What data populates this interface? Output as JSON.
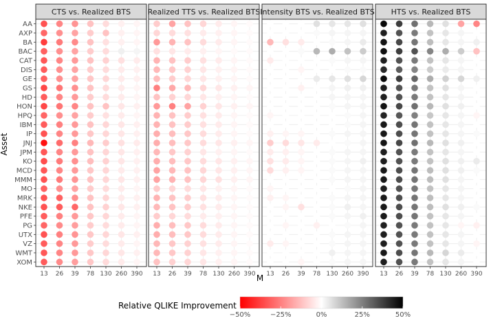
{
  "chart_data": {
    "type": "heatmap",
    "subtype": "faceted-dot-matrix",
    "x_label": "M",
    "y_label": "Asset",
    "x_ticks": [
      "13",
      "26",
      "39",
      "78",
      "130",
      "260",
      "390"
    ],
    "assets": [
      "AA",
      "AXP",
      "BA",
      "BAC",
      "CAT",
      "DIS",
      "GE",
      "GS",
      "HD",
      "HON",
      "HPQ",
      "IBM",
      "IP",
      "JNJ",
      "JPM",
      "KO",
      "MCD",
      "MMM",
      "MO",
      "MRK",
      "NKE",
      "PFE",
      "PG",
      "UTX",
      "VZ",
      "WMT",
      "XOM"
    ],
    "legend": {
      "title": "Relative QLIKE Improvement",
      "range": [
        -0.5,
        0.5
      ],
      "ticks": [
        "−50%",
        "−25%",
        "0%",
        "25%",
        "50%"
      ],
      "tick_values": [
        -0.5,
        -0.25,
        0,
        0.25,
        0.5
      ],
      "colors": {
        "negative": "#ff0000",
        "zero": "#ffffff",
        "positive": "#000000"
      }
    },
    "unit": "fraction (negative = red, positive = grey/black)",
    "panels": [
      {
        "title": "CTS    vs.    Realized BTS",
        "values": [
          [
            -0.34,
            -0.24,
            -0.21,
            -0.12,
            -0.07,
            -0.03,
            -0.02
          ],
          [
            -0.3,
            -0.22,
            -0.18,
            -0.1,
            -0.12,
            -0.03,
            -0.02
          ],
          [
            -0.38,
            -0.26,
            -0.23,
            -0.12,
            -0.06,
            -0.03,
            -0.02
          ],
          [
            -0.31,
            -0.22,
            -0.18,
            -0.1,
            -0.07,
            0.03,
            0.02
          ],
          [
            -0.33,
            -0.24,
            -0.2,
            -0.12,
            -0.09,
            -0.06,
            -0.04
          ],
          [
            -0.32,
            -0.22,
            -0.18,
            -0.1,
            -0.07,
            -0.04,
            -0.03
          ],
          [
            -0.31,
            -0.22,
            -0.18,
            -0.11,
            -0.08,
            -0.04,
            -0.03
          ],
          [
            -0.36,
            -0.27,
            -0.22,
            -0.12,
            -0.07,
            -0.04,
            -0.02
          ],
          [
            -0.32,
            -0.24,
            -0.2,
            -0.1,
            -0.07,
            -0.04,
            -0.02
          ],
          [
            -0.36,
            -0.27,
            -0.24,
            -0.12,
            -0.12,
            -0.05,
            -0.03
          ],
          [
            -0.3,
            -0.22,
            -0.18,
            -0.1,
            -0.06,
            -0.04,
            -0.02
          ],
          [
            -0.32,
            -0.25,
            -0.2,
            -0.12,
            -0.08,
            -0.05,
            -0.03
          ],
          [
            -0.34,
            -0.24,
            -0.2,
            -0.11,
            -0.08,
            -0.05,
            -0.03
          ],
          [
            -0.47,
            -0.29,
            -0.25,
            -0.14,
            -0.1,
            -0.06,
            -0.04
          ],
          [
            -0.33,
            -0.24,
            -0.2,
            -0.12,
            -0.08,
            -0.05,
            -0.03
          ],
          [
            -0.35,
            -0.26,
            -0.22,
            -0.13,
            -0.09,
            -0.05,
            -0.03
          ],
          [
            -0.33,
            -0.24,
            -0.2,
            -0.11,
            -0.08,
            -0.04,
            -0.03
          ],
          [
            -0.34,
            -0.26,
            -0.21,
            -0.12,
            -0.08,
            -0.05,
            -0.03
          ],
          [
            -0.31,
            -0.22,
            -0.18,
            -0.1,
            -0.07,
            -0.04,
            -0.02
          ],
          [
            -0.34,
            -0.31,
            -0.22,
            -0.12,
            -0.08,
            -0.04,
            -0.03
          ],
          [
            -0.34,
            -0.32,
            -0.3,
            -0.12,
            -0.09,
            -0.05,
            -0.03
          ],
          [
            -0.32,
            -0.25,
            -0.2,
            -0.11,
            -0.08,
            -0.04,
            -0.02
          ],
          [
            -0.3,
            -0.23,
            -0.19,
            -0.1,
            -0.07,
            -0.04,
            -0.02
          ],
          [
            -0.34,
            -0.25,
            -0.21,
            -0.11,
            -0.08,
            -0.05,
            -0.03
          ],
          [
            -0.32,
            -0.24,
            -0.2,
            -0.1,
            -0.07,
            -0.04,
            -0.02
          ],
          [
            -0.33,
            -0.24,
            -0.2,
            -0.11,
            -0.08,
            -0.05,
            -0.03
          ],
          [
            -0.32,
            -0.23,
            -0.19,
            -0.11,
            -0.07,
            -0.04,
            -0.02
          ]
        ]
      },
      {
        "title": "Realized TTS    vs.    Realized BTS",
        "values": [
          [
            -0.1,
            -0.18,
            -0.12,
            -0.08,
            -0.04,
            -0.02,
            -0.01
          ],
          [
            -0.08,
            -0.07,
            -0.06,
            -0.04,
            -0.03,
            -0.02,
            -0.01
          ],
          [
            -0.2,
            -0.15,
            -0.12,
            -0.07,
            -0.04,
            -0.02,
            -0.01
          ],
          [
            -0.06,
            -0.05,
            -0.04,
            -0.03,
            -0.02,
            -0.01,
            -0.01
          ],
          [
            -0.15,
            -0.12,
            -0.1,
            -0.06,
            -0.04,
            -0.02,
            -0.01
          ],
          [
            -0.14,
            -0.11,
            -0.09,
            -0.05,
            -0.03,
            -0.02,
            -0.01
          ],
          [
            -0.13,
            -0.1,
            -0.08,
            -0.05,
            -0.03,
            -0.02,
            -0.01
          ],
          [
            -0.25,
            -0.17,
            -0.14,
            -0.08,
            -0.05,
            -0.03,
            -0.02
          ],
          [
            -0.12,
            -0.09,
            -0.08,
            -0.05,
            -0.03,
            -0.02,
            -0.01
          ],
          [
            -0.2,
            -0.25,
            -0.18,
            -0.09,
            -0.05,
            -0.03,
            -0.02
          ],
          [
            -0.15,
            -0.12,
            -0.1,
            -0.06,
            -0.04,
            -0.02,
            -0.01
          ],
          [
            -0.15,
            -0.12,
            -0.1,
            -0.06,
            -0.04,
            -0.02,
            -0.01
          ],
          [
            -0.16,
            -0.13,
            -0.11,
            -0.07,
            -0.04,
            -0.02,
            -0.01
          ],
          [
            -0.16,
            -0.13,
            -0.11,
            -0.07,
            -0.05,
            -0.03,
            -0.02
          ],
          [
            -0.14,
            -0.11,
            -0.09,
            -0.05,
            -0.03,
            -0.02,
            -0.01
          ],
          [
            -0.16,
            -0.13,
            -0.11,
            -0.07,
            -0.05,
            -0.03,
            -0.02
          ],
          [
            -0.18,
            -0.14,
            -0.12,
            -0.08,
            -0.05,
            -0.03,
            -0.02
          ],
          [
            -0.18,
            -0.15,
            -0.12,
            -0.08,
            -0.06,
            -0.03,
            -0.02
          ],
          [
            -0.1,
            -0.08,
            -0.07,
            -0.05,
            -0.03,
            -0.02,
            -0.01
          ],
          [
            -0.15,
            -0.12,
            -0.1,
            -0.06,
            -0.04,
            -0.02,
            -0.01
          ],
          [
            -0.14,
            -0.12,
            -0.1,
            -0.06,
            -0.04,
            -0.02,
            -0.01
          ],
          [
            -0.1,
            -0.08,
            -0.07,
            -0.04,
            -0.03,
            -0.02,
            -0.01
          ],
          [
            -0.16,
            -0.13,
            -0.11,
            -0.07,
            -0.04,
            -0.02,
            -0.01
          ],
          [
            -0.16,
            -0.13,
            -0.11,
            -0.07,
            -0.04,
            -0.02,
            -0.01
          ],
          [
            -0.14,
            -0.11,
            -0.09,
            -0.06,
            -0.04,
            -0.02,
            -0.01
          ],
          [
            -0.14,
            -0.11,
            -0.09,
            -0.05,
            -0.03,
            -0.02,
            -0.01
          ],
          [
            -0.12,
            -0.09,
            -0.08,
            -0.05,
            -0.03,
            -0.02,
            -0.01
          ]
        ]
      },
      {
        "title": "Intensity BTS    vs.    Realized BTS",
        "values": [
          [
            0.0,
            0.0,
            0.0,
            0.06,
            0.05,
            0.05,
            0.06
          ],
          [
            0.0,
            0.0,
            0.0,
            0.01,
            0.02,
            0.02,
            0.02
          ],
          [
            -0.14,
            -0.06,
            -0.04,
            0.0,
            0.01,
            0.02,
            0.04
          ],
          [
            0.0,
            0.0,
            0.01,
            0.14,
            0.16,
            0.12,
            0.1
          ],
          [
            -0.04,
            0.0,
            0.0,
            0.0,
            0.01,
            0.02,
            0.02
          ],
          [
            0.0,
            0.0,
            -0.02,
            0.0,
            0.0,
            0.01,
            0.01
          ],
          [
            0.0,
            0.0,
            0.0,
            0.04,
            0.05,
            0.06,
            0.08
          ],
          [
            0.0,
            0.0,
            -0.03,
            0.0,
            0.02,
            0.03,
            0.03
          ],
          [
            0.0,
            0.0,
            0.0,
            0.0,
            0.02,
            0.02,
            0.02
          ],
          [
            0.0,
            0.0,
            0.0,
            0.0,
            0.01,
            0.02,
            0.02
          ],
          [
            -0.02,
            0.0,
            0.0,
            0.0,
            0.0,
            0.01,
            0.02
          ],
          [
            0.0,
            0.0,
            0.0,
            0.0,
            0.0,
            0.01,
            0.02
          ],
          [
            -0.03,
            -0.02,
            -0.02,
            0.0,
            0.01,
            0.02,
            0.02
          ],
          [
            -0.1,
            -0.07,
            -0.05,
            -0.04,
            0.0,
            0.01,
            0.02
          ],
          [
            -0.04,
            -0.03,
            -0.02,
            0.0,
            0.01,
            0.02,
            0.02
          ],
          [
            -0.06,
            -0.04,
            -0.02,
            0.0,
            0.01,
            0.02,
            0.03
          ],
          [
            -0.07,
            -0.03,
            -0.02,
            0.0,
            0.01,
            0.02,
            0.02
          ],
          [
            0.0,
            0.0,
            0.0,
            0.0,
            0.01,
            0.02,
            0.02
          ],
          [
            -0.02,
            0.0,
            0.0,
            0.0,
            0.0,
            0.01,
            0.02
          ],
          [
            -0.03,
            -0.02,
            0.0,
            0.0,
            0.01,
            0.02,
            0.02
          ],
          [
            0.0,
            -0.02,
            -0.06,
            0.0,
            0.01,
            0.03,
            0.02
          ],
          [
            0.0,
            0.0,
            0.0,
            0.0,
            0.01,
            0.02,
            0.03
          ],
          [
            0.0,
            -0.02,
            0.0,
            -0.03,
            0.0,
            0.01,
            0.02
          ],
          [
            0.0,
            0.0,
            0.0,
            0.0,
            0.01,
            0.02,
            0.02
          ],
          [
            -0.04,
            -0.02,
            0.0,
            0.0,
            0.01,
            0.02,
            0.02
          ],
          [
            0.0,
            0.0,
            0.0,
            0.0,
            0.03,
            0.02,
            0.02
          ],
          [
            0.0,
            0.0,
            -0.02,
            0.0,
            0.01,
            0.02,
            0.02
          ]
        ]
      },
      {
        "title": "HTS    vs.    Realized BTS",
        "values": [
          [
            0.48,
            0.38,
            0.28,
            0.14,
            0.06,
            -0.18,
            -0.24
          ],
          [
            0.44,
            0.34,
            0.26,
            0.12,
            0.05,
            0.02,
            0.0
          ],
          [
            0.46,
            0.36,
            0.27,
            0.13,
            0.05,
            0.02,
            0.03
          ],
          [
            0.47,
            0.38,
            0.34,
            0.24,
            0.16,
            0.1,
            -0.12
          ],
          [
            0.44,
            0.34,
            0.26,
            0.12,
            0.05,
            0.02,
            0.0
          ],
          [
            0.42,
            0.32,
            0.24,
            0.1,
            0.04,
            0.02,
            0.0
          ],
          [
            0.48,
            0.38,
            0.3,
            0.16,
            0.09,
            0.08,
            0.03
          ],
          [
            0.44,
            0.34,
            0.26,
            0.12,
            0.06,
            0.02,
            0.0
          ],
          [
            0.44,
            0.34,
            0.26,
            0.12,
            0.05,
            0.02,
            0.0
          ],
          [
            0.46,
            0.36,
            0.28,
            0.14,
            0.06,
            0.03,
            0.0
          ],
          [
            0.43,
            0.33,
            0.25,
            0.11,
            0.05,
            0.02,
            -0.02
          ],
          [
            0.45,
            0.35,
            0.27,
            0.12,
            0.05,
            0.02,
            0.0
          ],
          [
            0.45,
            0.35,
            0.27,
            0.12,
            0.05,
            0.02,
            0.01
          ],
          [
            0.46,
            0.36,
            0.28,
            0.14,
            0.06,
            0.03,
            0.0
          ],
          [
            0.44,
            0.34,
            0.26,
            0.12,
            0.05,
            0.02,
            0.0
          ],
          [
            0.44,
            0.34,
            0.26,
            0.12,
            0.06,
            0.03,
            0.04
          ],
          [
            0.45,
            0.35,
            0.27,
            0.13,
            0.06,
            0.03,
            0.01
          ],
          [
            0.45,
            0.35,
            0.27,
            0.13,
            0.06,
            0.02,
            0.0
          ],
          [
            0.44,
            0.34,
            0.26,
            0.12,
            0.05,
            0.02,
            0.0
          ],
          [
            0.45,
            0.35,
            0.27,
            0.13,
            0.05,
            0.02,
            0.0
          ],
          [
            0.45,
            0.35,
            0.27,
            0.13,
            0.06,
            0.03,
            0.01
          ],
          [
            0.45,
            0.35,
            0.27,
            0.12,
            0.05,
            0.02,
            0.0
          ],
          [
            0.44,
            0.34,
            0.26,
            0.12,
            0.05,
            -0.02,
            -0.03
          ],
          [
            0.44,
            0.34,
            0.26,
            0.12,
            0.05,
            0.02,
            0.0
          ],
          [
            0.44,
            0.34,
            0.26,
            0.12,
            0.05,
            0.02,
            -0.02
          ],
          [
            0.45,
            0.35,
            0.27,
            0.14,
            0.08,
            0.04,
            0.0
          ],
          [
            0.44,
            0.34,
            0.26,
            0.12,
            0.05,
            0.02,
            0.0
          ]
        ]
      }
    ]
  }
}
